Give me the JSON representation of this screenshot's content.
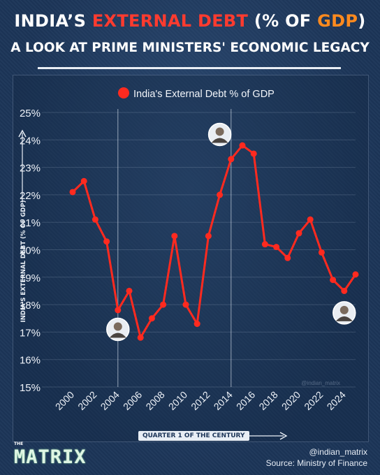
{
  "header": {
    "title_part1": "INDIA’S ",
    "title_part2": "EXTERNAL DEBT",
    "title_part3": " (% OF ",
    "title_part4": "GDP",
    "title_part5": ")",
    "subtitle": "A LOOK AT PRIME MINISTERS' ECONOMIC LEGACY"
  },
  "colors": {
    "line": "#ff2a1f",
    "accent_red": "#ff3b2f",
    "accent_orange": "#ff8a1e",
    "background": "#1c3558"
  },
  "chart_data": {
    "type": "line",
    "legend": "India's External Debt % of GDP",
    "legend_placement": "top-center",
    "ylabel": "INDIA'S EXTERNAL DEBT (% OF GDP)",
    "xlabel": "QUARTER 1 OF THE CENTURY",
    "ylim": [
      15,
      25
    ],
    "yticks": [
      "15%",
      "16%",
      "17%",
      "18%",
      "19%",
      "20%",
      "21%",
      "22%",
      "23%",
      "24%",
      "25%"
    ],
    "xticks": [
      "2000",
      "2002",
      "2004",
      "2006",
      "2008",
      "2010",
      "2012",
      "2014",
      "2016",
      "2018",
      "2020",
      "2022",
      "2024"
    ],
    "grid": true,
    "x": [
      2000,
      2001,
      2002,
      2003,
      2004,
      2005,
      2006,
      2007,
      2008,
      2009,
      2010,
      2011,
      2012,
      2013,
      2014,
      2015,
      2016,
      2017,
      2018,
      2019,
      2020,
      2021,
      2022,
      2023,
      2024,
      2025
    ],
    "values": [
      22.1,
      22.5,
      21.1,
      20.3,
      17.8,
      18.5,
      16.8,
      17.5,
      18.0,
      20.5,
      18.0,
      17.3,
      20.5,
      22.0,
      23.3,
      23.8,
      23.5,
      20.2,
      20.1,
      19.7,
      20.6,
      21.1,
      19.9,
      18.9,
      18.5,
      19.1
    ],
    "markers": [
      2004,
      2014
    ],
    "watermark": "@indian_matrix",
    "annotations": [
      {
        "name": "portrait-vajpayee-icon",
        "x": 2004,
        "y": 17.1
      },
      {
        "name": "portrait-manmohan-icon",
        "x": 2013,
        "y": 24.2
      },
      {
        "name": "portrait-modi-icon",
        "x": 2024,
        "y": 17.7
      }
    ]
  },
  "footer": {
    "logo_the": "THE",
    "logo_name": "MATRIX",
    "handle": "@indian_matrix",
    "source": "Source: Ministry of Finance"
  }
}
